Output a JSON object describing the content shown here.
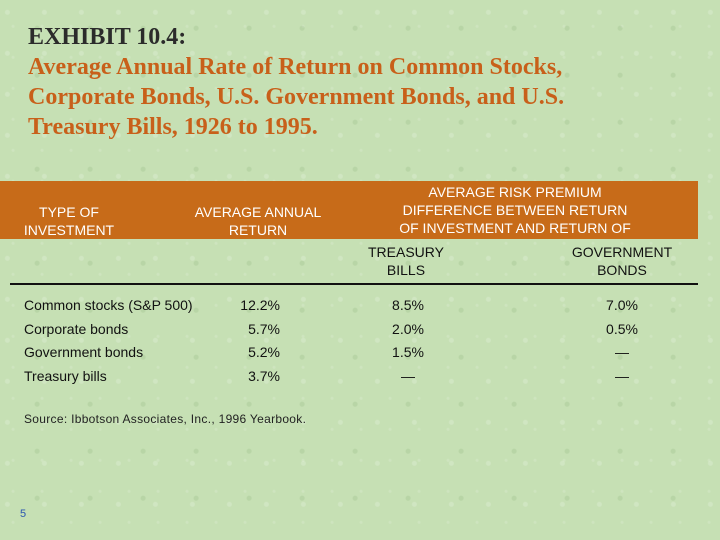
{
  "exhibit_label": "EXHIBIT 10.4:",
  "title_lines": [
    "Average Annual Rate of Return on Common Stocks,",
    "Corporate Bonds, U.S. Government Bonds, and U.S.",
    "Treasury Bills, 1926 to 1995."
  ],
  "table": {
    "header": {
      "type_line1": "TYPE OF",
      "type_line2": "INVESTMENT",
      "avg_line1": "AVERAGE ANNUAL",
      "avg_line2": "RETURN",
      "risk_line1": "AVERAGE RISK PREMIUM",
      "risk_line2": "DIFFERENCE BETWEEN RETURN",
      "risk_line3": "OF INVESTMENT AND RETURN OF",
      "tbills_line1": "TREASURY",
      "tbills_line2": "BILLS",
      "gbonds_line1": "GOVERNMENT",
      "gbonds_line2": "BONDS"
    },
    "rows": [
      {
        "name": "Common stocks (S&P 500)",
        "return": "12.2%",
        "tbills": "8.5%",
        "gbonds": "7.0%"
      },
      {
        "name": "Corporate bonds",
        "return": "5.7%",
        "tbills": "2.0%",
        "gbonds": "0.5%"
      },
      {
        "name": "Government bonds",
        "return": "5.2%",
        "tbills": "1.5%",
        "gbonds": "—"
      },
      {
        "name": "Treasury bills",
        "return": "3.7%",
        "tbills": "—",
        "gbonds": "—"
      }
    ]
  },
  "source": "Source: Ibbotson Associates, Inc., 1996 Yearbook.",
  "page_number": "5"
}
